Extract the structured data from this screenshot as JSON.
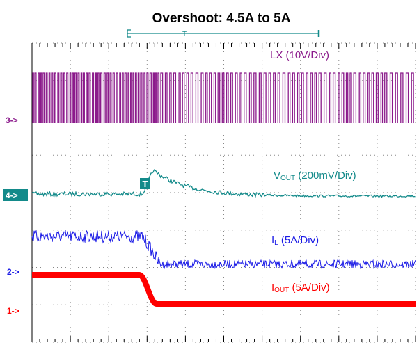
{
  "title": "Overshoot: 4.5A to 5A",
  "trigger": "T",
  "channels": [
    {
      "marker": "3->",
      "label": "LX (10V/Div)"
    },
    {
      "marker": "4->",
      "label": "V",
      "label_sub": "OUT",
      "label_rest": " (200mV/Div)"
    },
    {
      "marker": "2->",
      "label": "I",
      "label_sub": "L",
      "label_rest": " (5A/Div)"
    },
    {
      "marker": "1->",
      "label": "I",
      "label_sub": "OUT",
      "label_rest": " (5A/Div)"
    }
  ]
}
